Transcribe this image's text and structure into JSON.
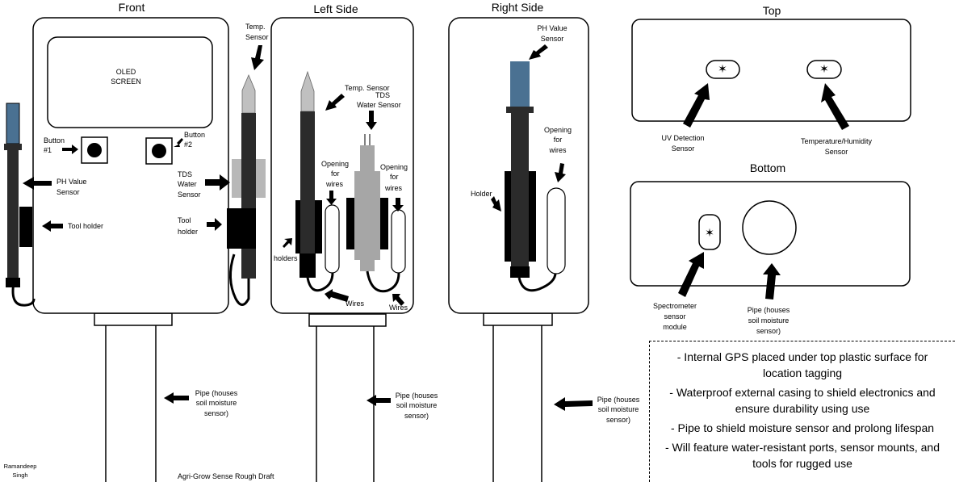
{
  "views": {
    "front": "Front",
    "left": "Left Side",
    "right": "Right Side",
    "top": "Top",
    "bottom": "Bottom"
  },
  "front": {
    "oled_l1": "OLED",
    "oled_l2": "SCREEN",
    "btn1_l1": "Button",
    "btn1_l2": "#1",
    "btn2_l1": "Button",
    "btn2_l2": "#2",
    "tds_l1": "TDS",
    "tds_l2": "Water",
    "tds_l3": "Sensor",
    "toolh_l1": "Tool",
    "toolh_l2": "holder",
    "ph_l1": "PH Value",
    "ph_l2": "Sensor",
    "tool_holder": "Tool holder",
    "temp_l1": "Temp.",
    "temp_l2": "Sensor",
    "pipe_l1": "Pipe (houses",
    "pipe_l2": "soil moisture",
    "pipe_l3": "sensor)"
  },
  "left": {
    "temp": "Temp. Sensor",
    "tds_l1": "TDS",
    "tds_l2": "Water Sensor",
    "open1_l1": "Opening",
    "open1_l2": "for",
    "open1_l3": "wires",
    "open2_l1": "Opening",
    "open2_l2": "for",
    "open2_l3": "wires",
    "holders": "holders",
    "wires1": "Wires",
    "wires2": "Wires",
    "pipe_l1": "Pipe (houses",
    "pipe_l2": "soil moisture",
    "pipe_l3": "sensor)"
  },
  "right": {
    "ph_l1": "PH Value",
    "ph_l2": "Sensor",
    "open_l1": "Opening",
    "open_l2": "for",
    "open_l3": "wires",
    "holder": "Holder",
    "pipe_l1": "Pipe (houses",
    "pipe_l2": "soil moisture",
    "pipe_l3": "sensor)"
  },
  "top": {
    "uv_l1": "UV Detection",
    "uv_l2": "Sensor",
    "th_l1": "Temperature/Humidity",
    "th_l2": "Sensor"
  },
  "bottom": {
    "spec_l1": "Spectrometer",
    "spec_l2": "sensor",
    "spec_l3": "module",
    "pipe_l1": "Pipe (houses",
    "pipe_l2": "soil moisture",
    "pipe_l3": "sensor)"
  },
  "notes": [
    "- Internal GPS placed under top plastic surface for location tagging",
    "- Waterproof external casing to shield electronics and ensure durability using use",
    "- Pipe to shield moisture sensor and prolong lifespan",
    "- Will feature water-resistant ports, sensor mounts, and tools for rugged use"
  ],
  "footer": {
    "author_l1": "Ramandeep",
    "author_l2": "Singh",
    "caption": "Agri-Grow Sense Rough Draft"
  },
  "colors": {
    "ph_tip": "#4a7192",
    "probe_dark": "#2b2b2b",
    "probe_light": "#b8b8b8",
    "tds_body": "#a6a6a6"
  }
}
